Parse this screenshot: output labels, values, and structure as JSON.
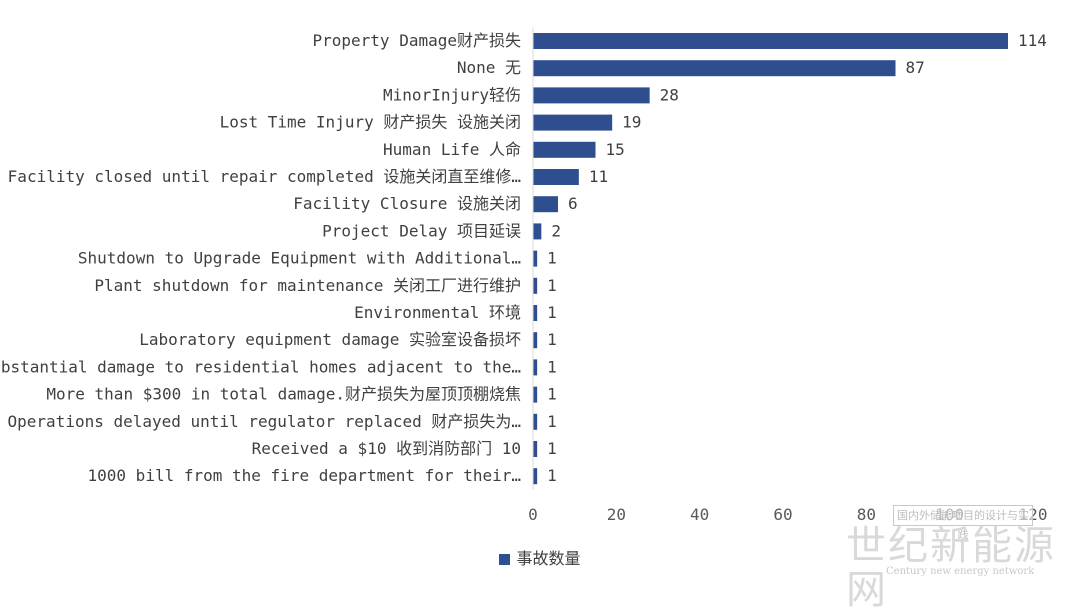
{
  "chart_data": {
    "type": "bar",
    "orientation": "horizontal",
    "categories": [
      "Property Damage财产损失",
      "None 无",
      "MinorInjury轻伤",
      "Lost Time Injury 财产损失 设施关闭",
      "Human Life 人命",
      "Facility closed until repair completed 设施关闭直至维修…",
      "Facility Closure 设施关闭",
      "Project Delay 项目延误",
      "Shutdown to Upgrade Equipment with Additional…",
      "Plant shutdown for maintenance 关闭工厂进行维护",
      "Environmental 环境",
      "Laboratory equipment damage 实验室设备损坏",
      "Substantial damage to residential homes adjacent to the…",
      "More than $300 in total damage.财产损失为屋顶顶棚烧焦",
      "Operations delayed until regulator replaced 财产损失为…",
      "Received a $10 收到消防部门 10",
      "1000 bill from the fire department for their…"
    ],
    "series": [
      {
        "name": "事故数量",
        "values": [
          114,
          87,
          28,
          19,
          15,
          11,
          6,
          2,
          1,
          1,
          1,
          1,
          1,
          1,
          1,
          1,
          1
        ]
      }
    ],
    "xlim": [
      0,
      120
    ],
    "xticks": [
      "0",
      "20",
      "40",
      "60",
      "80",
      "100",
      "120"
    ],
    "bar_color": "#2f4e8f",
    "grid": false,
    "legend_position": "bottom"
  },
  "watermark": {
    "box_text": "国内外储能项目的设计与实践",
    "brand": "世纪新能源网",
    "brand_en": "Century new energy network"
  }
}
